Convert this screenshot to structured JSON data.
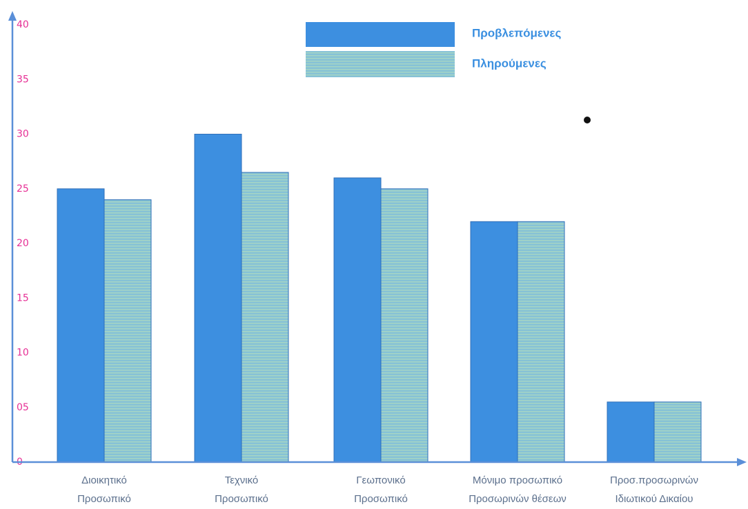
{
  "chart_data": {
    "type": "bar",
    "categories": [
      [
        "Διοικητικό",
        "Προσωπικό"
      ],
      [
        "Τεχνικό",
        "Προσωπικό"
      ],
      [
        "Γεωπονικό",
        "Προσωπικό"
      ],
      [
        "Μόνιμο προσωπικό",
        "Προσωρινών θέσεων"
      ],
      [
        "Προσ.προσωρινών",
        "Ιδιωτικού Δικαίου"
      ]
    ],
    "series": [
      {
        "name": "Προβλεπόμενες",
        "values": [
          25,
          30,
          26,
          22,
          5.5
        ]
      },
      {
        "name": "Πληρούμενες",
        "values": [
          24,
          26.5,
          25,
          22,
          5.5
        ]
      }
    ],
    "yticks": [
      {
        "value": 0,
        "label": "0"
      },
      {
        "value": 5,
        "label": "05"
      },
      {
        "value": 10,
        "label": "10"
      },
      {
        "value": 15,
        "label": "15"
      },
      {
        "value": 20,
        "label": "20"
      },
      {
        "value": 25,
        "label": "25"
      },
      {
        "value": 30,
        "label": "30"
      },
      {
        "value": 35,
        "label": "35"
      },
      {
        "value": 40,
        "label": "40"
      }
    ],
    "ylim": [
      0,
      40
    ],
    "legend_position": "top-center",
    "grid": false,
    "colors": {
      "series1": "#3d8fe0",
      "series2": "#8fc8d8",
      "axis": "#5a8fd8",
      "tick_label": "#e62f95"
    }
  }
}
